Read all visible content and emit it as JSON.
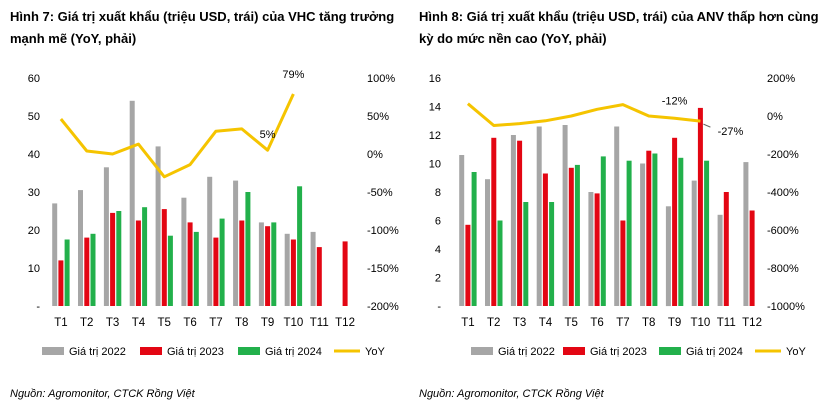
{
  "colors": {
    "s2022": "#a6a6a6",
    "s2023": "#e30613",
    "s2024": "#22b04b",
    "yoy": "#f5c400"
  },
  "panels": [
    {
      "title": "Hình 7: Giá trị xuất khẩu (triệu USD, trái) của VHC tăng trưởng mạnh mẽ (YoY, phải)",
      "source": "Nguồn: Agromonitor, CTCK Rồng Việt"
    },
    {
      "title": "Hình 8: Giá trị xuất khẩu (triệu USD, trái) của ANV thấp hơn cùng kỳ do mức nền cao (YoY, phải)",
      "source": "Nguồn: Agromonitor, CTCK Rồng Việt"
    }
  ],
  "chart_data": [
    {
      "type": "bar",
      "categories": [
        "T1",
        "T2",
        "T3",
        "T4",
        "T5",
        "T6",
        "T7",
        "T8",
        "T9",
        "T10",
        "T11",
        "T12"
      ],
      "ylim": [
        0,
        60
      ],
      "yticks": [
        "-",
        "10",
        "20",
        "30",
        "40",
        "50",
        "60"
      ],
      "y2lim": [
        -200,
        100
      ],
      "y2ticks": [
        "-200%",
        "-150%",
        "-100%",
        "-50%",
        "0%",
        "50%",
        "100%"
      ],
      "series": [
        {
          "name": "Giá trị 2022",
          "values": [
            27,
            30.5,
            36.5,
            54,
            42,
            28.5,
            34,
            33,
            22,
            19,
            19.5,
            0
          ]
        },
        {
          "name": "Giá trị 2023",
          "values": [
            12,
            18,
            24.5,
            22.5,
            25.5,
            22,
            18,
            22.5,
            21,
            17.5,
            15.5,
            17
          ]
        },
        {
          "name": "Giá trị 2024",
          "values": [
            17.5,
            19,
            25,
            26,
            18.5,
            19.5,
            23,
            30,
            22,
            31.5,
            null,
            null
          ]
        },
        {
          "name": "YoY",
          "type": "line",
          "axis": "right",
          "values": [
            46,
            4,
            0,
            13,
            -30,
            -14,
            30,
            33,
            5,
            79,
            null,
            null
          ]
        }
      ],
      "annotations": [
        "79%",
        "5%"
      ]
    },
    {
      "type": "bar",
      "categories": [
        "T1",
        "T2",
        "T3",
        "T4",
        "T5",
        "T6",
        "T7",
        "T8",
        "T9",
        "T10",
        "T11",
        "T12"
      ],
      "ylim": [
        0,
        16
      ],
      "yticks": [
        "-",
        "2",
        "4",
        "6",
        "8",
        "10",
        "12",
        "14",
        "16"
      ],
      "y2lim": [
        -1000,
        200
      ],
      "y2ticks": [
        "-1000%",
        "-800%",
        "-600%",
        "-400%",
        "-200%",
        "0%",
        "200%"
      ],
      "series": [
        {
          "name": "Giá trị 2022",
          "values": [
            10.6,
            8.9,
            12,
            12.6,
            12.7,
            8,
            12.6,
            10,
            7,
            8.8,
            6.4,
            10.1
          ]
        },
        {
          "name": "Giá trị 2023",
          "values": [
            5.7,
            11.8,
            11.6,
            9.3,
            9.7,
            7.9,
            6,
            10.9,
            11.8,
            13.9,
            8,
            6.7
          ]
        },
        {
          "name": "Giá trị 2024",
          "values": [
            9.4,
            6,
            7.3,
            7.3,
            9.9,
            10.5,
            10.2,
            10.7,
            10.4,
            10.2,
            null,
            null
          ]
        },
        {
          "name": "YoY",
          "type": "line",
          "axis": "right",
          "values": [
            65,
            -50,
            -40,
            -25,
            0,
            35,
            60,
            0,
            -12,
            -27,
            null,
            null
          ]
        }
      ],
      "annotations": [
        "-12%",
        "-27%"
      ]
    }
  ]
}
